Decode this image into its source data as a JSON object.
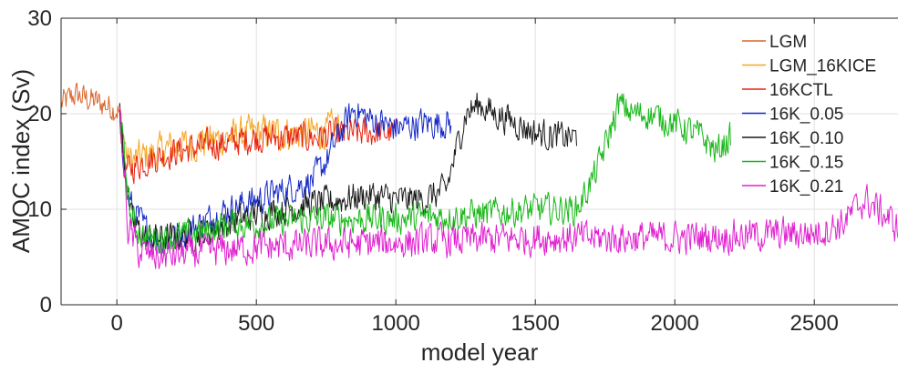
{
  "chart_data": {
    "type": "line",
    "xlabel": "model year",
    "ylabel": "AMOC index (Sv)",
    "xlim": [
      -200,
      2800
    ],
    "ylim": [
      0,
      30
    ],
    "x_ticks": [
      0,
      500,
      1000,
      1500,
      2000,
      2500
    ],
    "x_tick_labels": [
      "0",
      "500",
      "1000",
      "1500",
      "2000",
      "2500"
    ],
    "y_ticks": [
      0,
      10,
      20,
      30
    ],
    "y_tick_labels": [
      "0",
      "10",
      "20",
      "30"
    ],
    "grid": true,
    "legend_position": "top-right",
    "series": [
      {
        "name": "LGM",
        "color": "#d9652b",
        "noise": 1.0,
        "points": [
          [
            -200,
            21
          ],
          [
            -150,
            22
          ],
          [
            -100,
            21.5
          ],
          [
            -50,
            21
          ],
          [
            0,
            20.5
          ],
          [
            10,
            20
          ]
        ]
      },
      {
        "name": "LGM_16KICE",
        "color": "#f5a623",
        "noise": 1.3,
        "points": [
          [
            10,
            20
          ],
          [
            40,
            15
          ],
          [
            100,
            15.5
          ],
          [
            200,
            16.5
          ],
          [
            300,
            17
          ],
          [
            400,
            17.5
          ],
          [
            500,
            18
          ],
          [
            600,
            18
          ],
          [
            700,
            18
          ],
          [
            800,
            18.5
          ]
        ]
      },
      {
        "name": "16KCTL",
        "color": "#e8230f",
        "noise": 1.1,
        "points": [
          [
            10,
            20
          ],
          [
            30,
            14
          ],
          [
            100,
            15
          ],
          [
            200,
            16
          ],
          [
            300,
            16.5
          ],
          [
            400,
            17
          ],
          [
            500,
            17.5
          ],
          [
            600,
            17.5
          ],
          [
            700,
            17.5
          ],
          [
            800,
            17.8
          ],
          [
            900,
            18
          ],
          [
            1000,
            18
          ]
        ]
      },
      {
        "name": "16K_0.05",
        "color": "#1428c8",
        "noise": 1.1,
        "points": [
          [
            10,
            20
          ],
          [
            40,
            11
          ],
          [
            100,
            8
          ],
          [
            150,
            6.5
          ],
          [
            200,
            7
          ],
          [
            300,
            8.5
          ],
          [
            400,
            10
          ],
          [
            500,
            11
          ],
          [
            600,
            12
          ],
          [
            700,
            13
          ],
          [
            750,
            15
          ],
          [
            800,
            18
          ],
          [
            850,
            20.5
          ],
          [
            900,
            19.5
          ],
          [
            1000,
            18.5
          ],
          [
            1100,
            19
          ],
          [
            1200,
            19
          ]
        ]
      },
      {
        "name": "16K_0.10",
        "color": "#1a1a1a",
        "noise": 1.1,
        "points": [
          [
            10,
            20
          ],
          [
            50,
            9
          ],
          [
            100,
            7
          ],
          [
            200,
            7
          ],
          [
            300,
            7.5
          ],
          [
            400,
            8.5
          ],
          [
            500,
            9.5
          ],
          [
            600,
            10
          ],
          [
            700,
            10.5
          ],
          [
            800,
            11
          ],
          [
            900,
            11.5
          ],
          [
            1000,
            11
          ],
          [
            1100,
            11
          ],
          [
            1180,
            12
          ],
          [
            1250,
            20
          ],
          [
            1300,
            21
          ],
          [
            1350,
            20
          ],
          [
            1400,
            19.5
          ],
          [
            1500,
            18
          ],
          [
            1600,
            17.5
          ],
          [
            1650,
            17.5
          ]
        ]
      },
      {
        "name": "16K_0.15",
        "color": "#17b817",
        "noise": 1.1,
        "points": [
          [
            10,
            20
          ],
          [
            50,
            9
          ],
          [
            100,
            7
          ],
          [
            200,
            7
          ],
          [
            300,
            7.5
          ],
          [
            400,
            8.5
          ],
          [
            500,
            8.5
          ],
          [
            700,
            9
          ],
          [
            1000,
            9
          ],
          [
            1300,
            9.5
          ],
          [
            1500,
            10
          ],
          [
            1650,
            10
          ],
          [
            1720,
            14
          ],
          [
            1800,
            21
          ],
          [
            1850,
            20
          ],
          [
            1900,
            20
          ],
          [
            2000,
            19
          ],
          [
            2100,
            17.5
          ],
          [
            2150,
            16
          ],
          [
            2200,
            17.5
          ]
        ]
      },
      {
        "name": "16K_0.21",
        "color": "#e020d0",
        "noise": 1.2,
        "points": [
          [
            10,
            20
          ],
          [
            40,
            8
          ],
          [
            80,
            5.5
          ],
          [
            150,
            5
          ],
          [
            300,
            5.5
          ],
          [
            500,
            6
          ],
          [
            1000,
            6.5
          ],
          [
            1500,
            7
          ],
          [
            2000,
            7
          ],
          [
            2500,
            7.5
          ],
          [
            2600,
            8.5
          ],
          [
            2680,
            11
          ],
          [
            2750,
            9.5
          ],
          [
            2800,
            8
          ]
        ]
      }
    ]
  }
}
